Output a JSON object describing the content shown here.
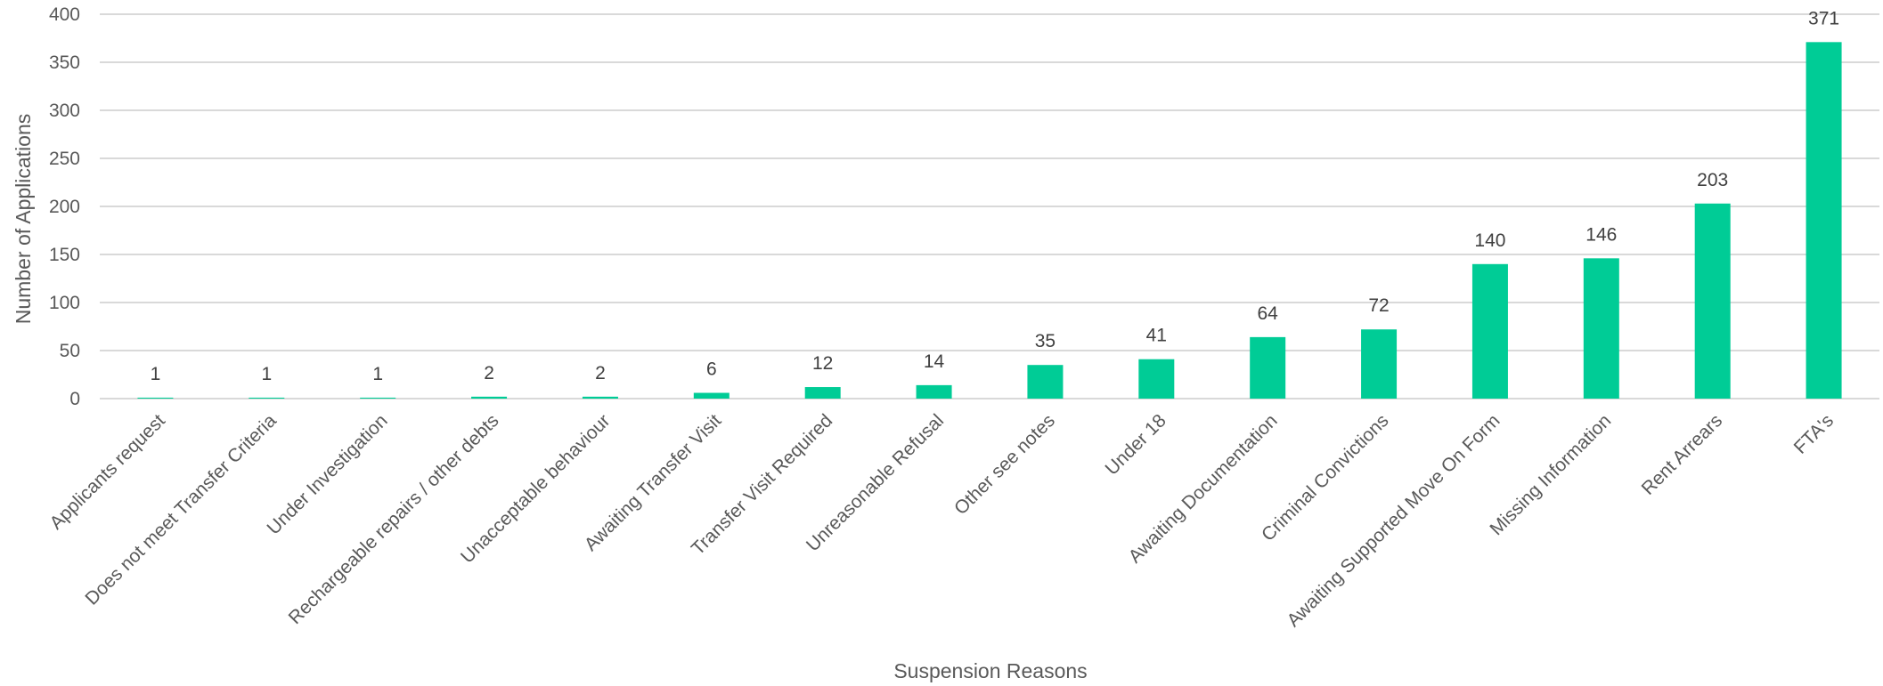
{
  "chart_data": {
    "type": "bar",
    "title": "",
    "xlabel": "Suspension Reasons",
    "ylabel": "Number of Applications",
    "ylim": [
      0,
      400
    ],
    "ytick_step": 50,
    "yticks": [
      "0",
      "50",
      "100",
      "150",
      "200",
      "250",
      "300",
      "350",
      "400"
    ],
    "grid": true,
    "legend": "none",
    "bar_color": "#00CC96",
    "categories": [
      "Applicants request",
      "Does not meet Transfer Criteria",
      "Under Investigation",
      "Rechargeable repairs / other debts",
      "Unacceptable behaviour",
      "Awaiting Transfer Visit",
      "Transfer Visit Required",
      "Unreasonable Refusal",
      "Other see notes",
      "Under 18",
      "Awaiting Documentation",
      "Criminal Convictions",
      "Awaiting Supported Move On Form",
      "Missing Information",
      "Rent Arrears",
      "FTA's"
    ],
    "values": [
      1,
      1,
      1,
      2,
      2,
      6,
      12,
      14,
      35,
      41,
      64,
      72,
      140,
      146,
      203,
      371
    ]
  }
}
